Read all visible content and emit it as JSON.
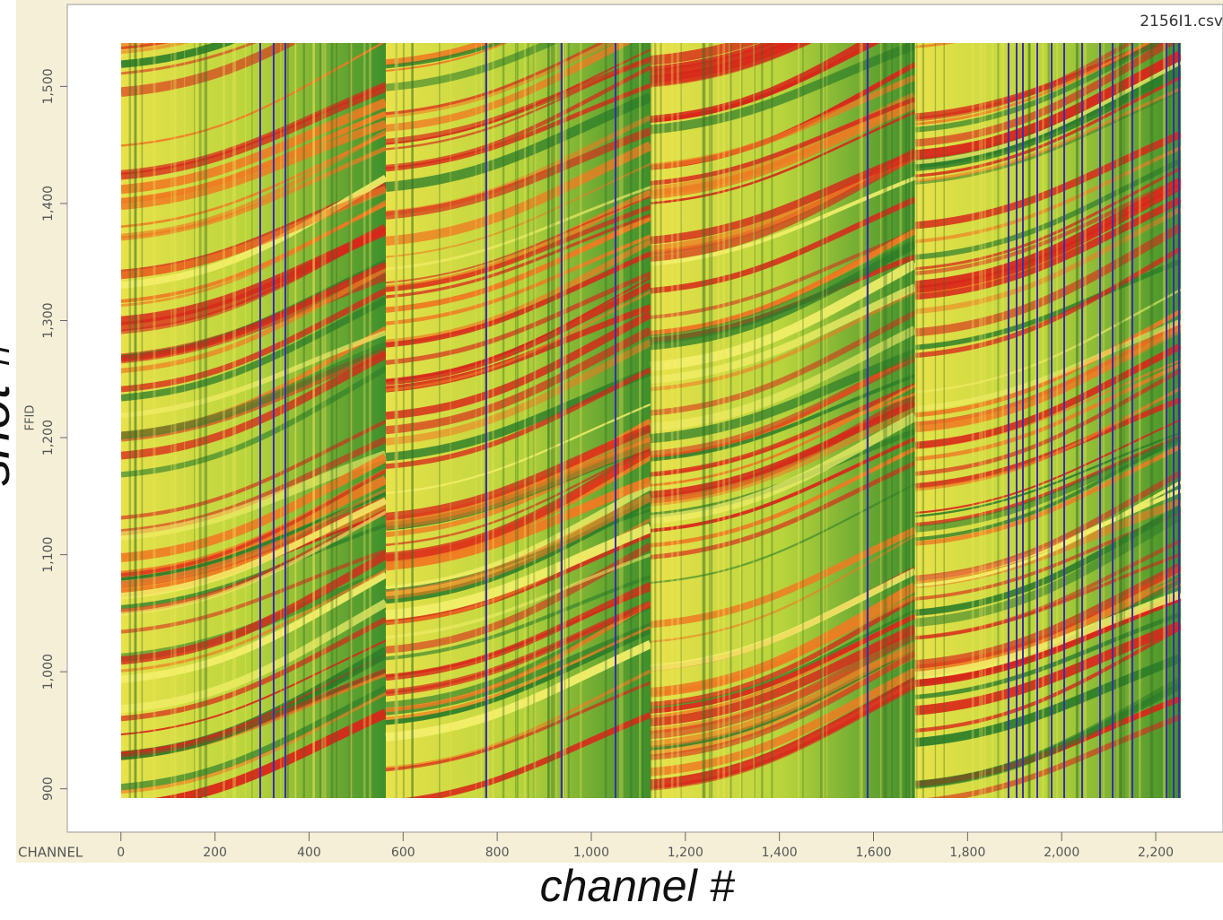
{
  "chart_data": {
    "type": "heatmap",
    "title": "2156I1.csv",
    "xlabel": "CHANNEL",
    "ylabel": "FFID",
    "annotations": {
      "x": "channel #",
      "y": "shot #"
    },
    "xlim": [
      -114,
      2343
    ],
    "ylim": [
      863,
      1570
    ],
    "xticks": [
      0,
      200,
      400,
      600,
      800,
      {
        "value": 1000,
        "label": "1,000"
      },
      {
        "value": 1200,
        "label": "1,200"
      },
      {
        "value": 1400,
        "label": "1,400"
      },
      {
        "value": 1600,
        "label": "1,600"
      },
      {
        "value": 1800,
        "label": "1,800"
      },
      {
        "value": 2000,
        "label": "2,000"
      },
      {
        "value": 2200,
        "label": "2,200"
      }
    ],
    "yticks": [
      900,
      {
        "value": 1000,
        "label": "1,000"
      },
      {
        "value": 1100,
        "label": "1,100"
      },
      {
        "value": 1200,
        "label": "1,200"
      },
      {
        "value": 1300,
        "label": "1,300"
      },
      {
        "value": 1400,
        "label": "1,400"
      },
      {
        "value": 1500,
        "label": "1,500"
      }
    ]
  }
}
